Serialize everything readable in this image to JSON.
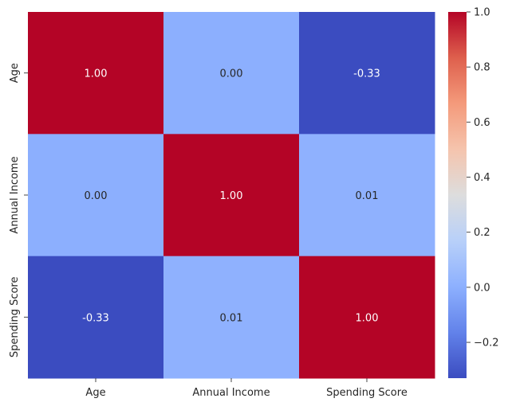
{
  "chart_data": {
    "type": "heatmap",
    "title": "",
    "xlabel": "",
    "ylabel": "",
    "x_categories": [
      "Age",
      "Annual Income",
      "Spending Score"
    ],
    "y_categories": [
      "Age",
      "Annual Income",
      "Spending Score"
    ],
    "values": [
      [
        1.0,
        0.0,
        -0.33
      ],
      [
        0.0,
        1.0,
        0.01
      ],
      [
        -0.33,
        0.01,
        1.0
      ]
    ],
    "value_format": "0.00",
    "colormap": "coolwarm",
    "color_range": [
      -0.33,
      1.0
    ],
    "colorbar": {
      "ticks": [
        -0.2,
        0.0,
        0.2,
        0.4,
        0.6,
        0.8,
        1.0
      ],
      "tick_labels": [
        "−0.2",
        "0.0",
        "0.2",
        "0.4",
        "0.6",
        "0.8",
        "1.0"
      ],
      "position": "right"
    },
    "grid": false,
    "legend": "none"
  }
}
